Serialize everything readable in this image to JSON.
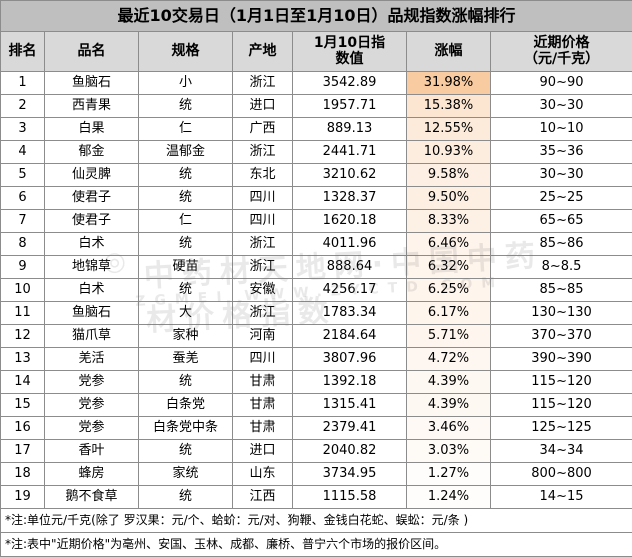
{
  "title": "最近10交易日（1月1日至1月10日）品规指数涨幅排行",
  "headers": {
    "rank": "排名",
    "name": "品名",
    "spec": "规格",
    "origin": "产地",
    "index_l1": "1月10日指",
    "index_l2": "数值",
    "change": "涨幅",
    "price_l1": "近期价格",
    "price_l2": "（元/千克）"
  },
  "rows": [
    {
      "rank": "1",
      "name": "鱼脑石",
      "spec": "小",
      "origin": "浙江",
      "index": "3542.89",
      "change": "31.98%",
      "price": "90~90"
    },
    {
      "rank": "2",
      "name": "西青果",
      "spec": "统",
      "origin": "进口",
      "index": "1957.71",
      "change": "15.38%",
      "price": "30~30"
    },
    {
      "rank": "3",
      "name": "白果",
      "spec": "仁",
      "origin": "广西",
      "index": "889.13",
      "change": "12.55%",
      "price": "10~10"
    },
    {
      "rank": "4",
      "name": "郁金",
      "spec": "温郁金",
      "origin": "浙江",
      "index": "2441.71",
      "change": "10.93%",
      "price": "35~36"
    },
    {
      "rank": "5",
      "name": "仙灵脾",
      "spec": "统",
      "origin": "东北",
      "index": "3210.62",
      "change": "9.58%",
      "price": "30~30"
    },
    {
      "rank": "6",
      "name": "使君子",
      "spec": "统",
      "origin": "四川",
      "index": "1328.37",
      "change": "9.50%",
      "price": "25~25"
    },
    {
      "rank": "7",
      "name": "使君子",
      "spec": "仁",
      "origin": "四川",
      "index": "1620.18",
      "change": "8.33%",
      "price": "65~65"
    },
    {
      "rank": "8",
      "name": "白术",
      "spec": "统",
      "origin": "浙江",
      "index": "4011.96",
      "change": "6.46%",
      "price": "85~86"
    },
    {
      "rank": "9",
      "name": "地锦草",
      "spec": "硬苗",
      "origin": "浙江",
      "index": "888.64",
      "change": "6.32%",
      "price": "8~8.5"
    },
    {
      "rank": "10",
      "name": "白术",
      "spec": "统",
      "origin": "安徽",
      "index": "4256.17",
      "change": "6.25%",
      "price": "85~85"
    },
    {
      "rank": "11",
      "name": "鱼脑石",
      "spec": "大",
      "origin": "浙江",
      "index": "1783.34",
      "change": "6.17%",
      "price": "130~130"
    },
    {
      "rank": "12",
      "name": "猫爪草",
      "spec": "家种",
      "origin": "河南",
      "index": "2184.64",
      "change": "5.71%",
      "price": "370~370"
    },
    {
      "rank": "13",
      "name": "羌活",
      "spec": "蚕羌",
      "origin": "四川",
      "index": "3807.96",
      "change": "4.72%",
      "price": "390~390"
    },
    {
      "rank": "14",
      "name": "党参",
      "spec": "统",
      "origin": "甘肃",
      "index": "1392.18",
      "change": "4.39%",
      "price": "115~120"
    },
    {
      "rank": "15",
      "name": "党参",
      "spec": "白条党",
      "origin": "甘肃",
      "index": "1315.41",
      "change": "4.39%",
      "price": "115~120"
    },
    {
      "rank": "16",
      "name": "党参",
      "spec": "白条党中条",
      "origin": "甘肃",
      "index": "2379.41",
      "change": "3.46%",
      "price": "125~125"
    },
    {
      "rank": "17",
      "name": "香叶",
      "spec": "统",
      "origin": "进口",
      "index": "2040.82",
      "change": "3.03%",
      "price": "34~34"
    },
    {
      "rank": "18",
      "name": "蜂房",
      "spec": "家统",
      "origin": "山东",
      "index": "3734.95",
      "change": "1.27%",
      "price": "800~800"
    },
    {
      "rank": "19",
      "name": "鹅不食草",
      "spec": "统",
      "origin": "江西",
      "index": "1115.58",
      "change": "1.24%",
      "price": "14~15"
    }
  ],
  "change_values": [
    31.98,
    15.38,
    12.55,
    10.93,
    9.58,
    9.5,
    8.33,
    6.46,
    6.32,
    6.25,
    6.17,
    5.71,
    4.72,
    4.39,
    4.39,
    3.46,
    3.03,
    1.27,
    1.24
  ],
  "heat_colors": {
    "high": "#f8cba0",
    "low": "#ffffff"
  },
  "notes": [
    "*注:单位元/千克(除了 罗汉果：元/个、蛤蚧：元/对、狗鞭、金钱白花蛇、蜈蚣：元/条 )",
    "*注:表中\"近期价格\"为亳州、安国、玉林、成都、廉桥、普宁六个市场的报价区间。"
  ],
  "watermark": {
    "main": "中药材天地网·中国中药材价格指数",
    "sub": "ZGMEI WWW.ZYCTD.COM"
  }
}
